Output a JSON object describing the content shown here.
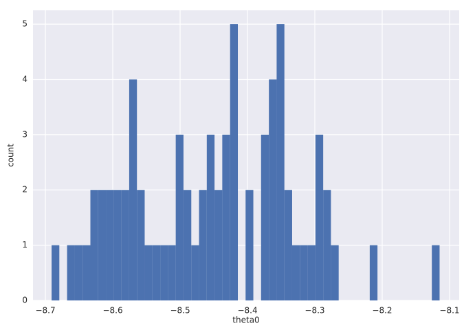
{
  "chart_data": {
    "type": "histogram",
    "x_label": "theta0",
    "y_label": "count",
    "bins": [
      -8.6908,
      -8.6793,
      -8.6678,
      -8.6562,
      -8.6447,
      -8.6332,
      -8.6217,
      -8.6102,
      -8.5986,
      -8.5871,
      -8.5756,
      -8.5641,
      -8.5526,
      -8.541,
      -8.5295,
      -8.518,
      -8.5065,
      -8.495,
      -8.4834,
      -8.4719,
      -8.4604,
      -8.4489,
      -8.4374,
      -8.4258,
      -8.4143,
      -8.4028,
      -8.3913,
      -8.3798,
      -8.3682,
      -8.3567,
      -8.3452,
      -8.3337,
      -8.3222,
      -8.3106,
      -8.2991,
      -8.2876,
      -8.2761,
      -8.2646,
      -8.253,
      -8.2415,
      -8.23,
      -8.2185,
      -8.207,
      -8.1954,
      -8.1839,
      -8.1724,
      -8.1609,
      -8.1494,
      -8.1378,
      -8.1263,
      -8.1148
    ],
    "values": [
      1,
      0,
      1,
      1,
      1,
      2,
      2,
      2,
      2,
      2,
      4,
      2,
      1,
      1,
      1,
      1,
      3,
      2,
      1,
      2,
      3,
      2,
      3,
      5,
      0,
      2,
      0,
      3,
      4,
      5,
      2,
      1,
      1,
      1,
      3,
      2,
      1,
      0,
      0,
      0,
      0,
      1,
      0,
      0,
      0,
      0,
      0,
      0,
      0,
      1
    ],
    "color": "#4c72b0",
    "xlim": [
      -8.7184,
      -8.0857
    ],
    "ylim": [
      0,
      5.25
    ],
    "xticks": [
      {
        "value": -8.7,
        "label": "−8.7"
      },
      {
        "value": -8.6,
        "label": "−8.6"
      },
      {
        "value": -8.5,
        "label": "−8.5"
      },
      {
        "value": -8.4,
        "label": "−8.4"
      },
      {
        "value": -8.3,
        "label": "−8.3"
      },
      {
        "value": -8.2,
        "label": "−8.2"
      },
      {
        "value": -8.1,
        "label": "−8.1"
      }
    ],
    "yticks": [
      0,
      1,
      2,
      3,
      4,
      5
    ],
    "grid": true
  }
}
